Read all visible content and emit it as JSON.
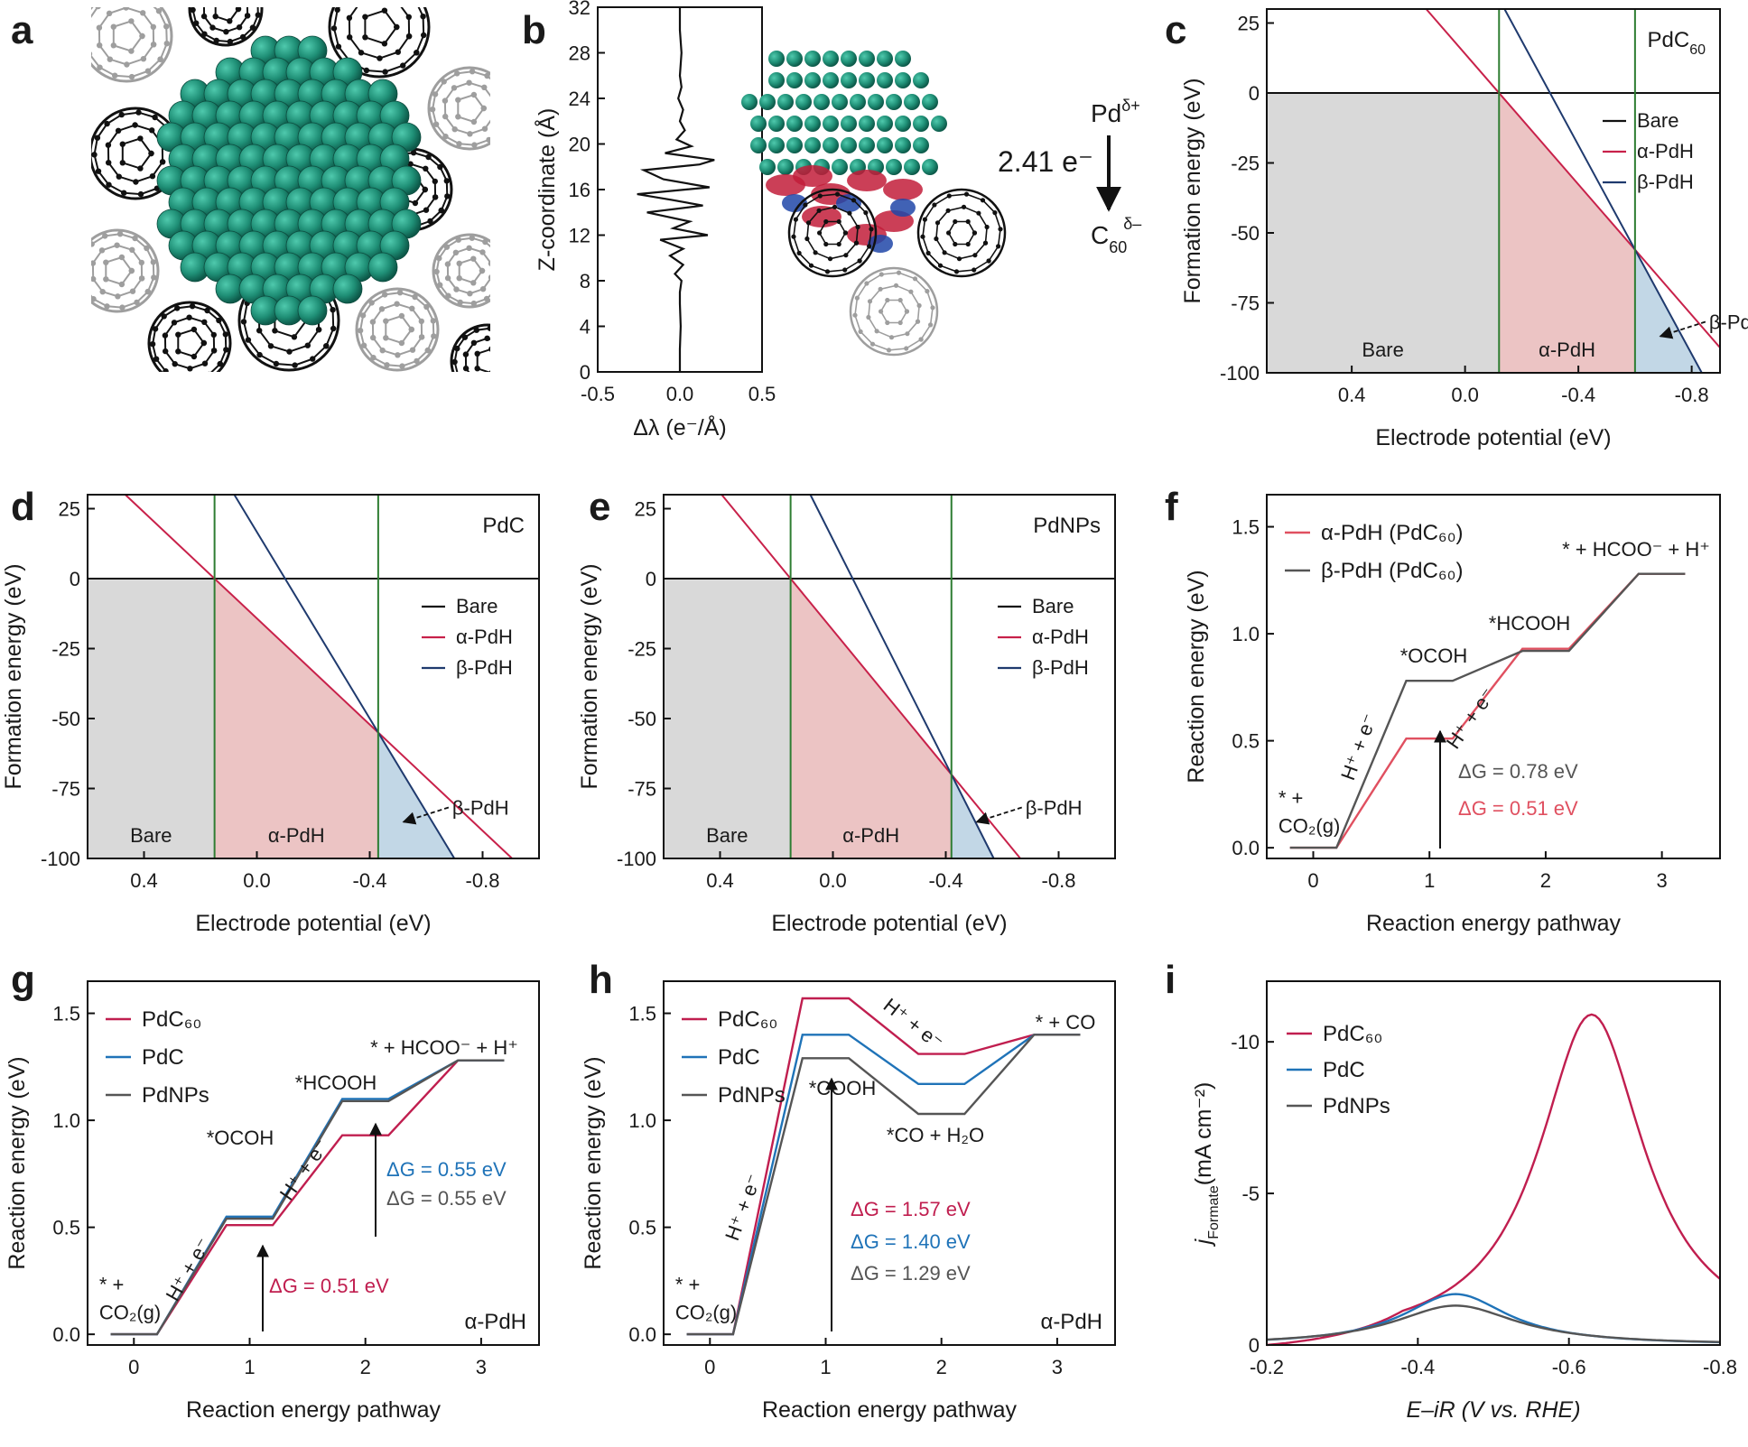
{
  "colors": {
    "bare": "#111111",
    "alpha": "#c8214a",
    "beta": "#1f3a6e",
    "pdc60": "#c01e4f",
    "pdc": "#1f73b8",
    "pdnps": "#555555",
    "phase_line": "#2e7d32",
    "bare_fill": "#d9d9d9",
    "alpha_fill": "#ecc4c4",
    "beta_fill": "#c2d7e6",
    "pd_atom": "#1f8f76",
    "c60_dark": "#111111",
    "c60_light": "#9e9e9e"
  },
  "panels": {
    "a": {
      "label": "a",
      "icons": [
        "pd-nanoparticle-icon",
        "c60-fullerene-icon"
      ]
    },
    "b": {
      "label": "b",
      "charge_text": "2.41 e⁻",
      "pd_text": "Pd",
      "pd_sup": "δ+",
      "c_text": "C",
      "c_sub": "60",
      "c_sup": "δ–"
    },
    "c": {
      "label": "c"
    },
    "d": {
      "label": "d"
    },
    "e": {
      "label": "e"
    },
    "f": {
      "label": "f"
    },
    "g": {
      "label": "g"
    },
    "h": {
      "label": "h"
    },
    "i": {
      "label": "i"
    }
  },
  "chart_data": [
    {
      "id": "b",
      "type": "line",
      "xlabel": "Δλ (e⁻/Å)",
      "ylabel": "Z-coordinate (Å)",
      "xlim": [
        -0.5,
        0.5
      ],
      "ylim": [
        0,
        32
      ],
      "xticks": [
        "-0.5",
        "0.0",
        "0.5"
      ],
      "yticks": [
        "0",
        "4",
        "8",
        "12",
        "16",
        "20",
        "24",
        "28",
        "32"
      ],
      "series": [
        {
          "points": [
            [
              0,
              0
            ],
            [
              0,
              2
            ],
            [
              0.005,
              4
            ],
            [
              0,
              6
            ],
            [
              0,
              7
            ],
            [
              0.01,
              8
            ],
            [
              -0.03,
              8.6
            ],
            [
              0.02,
              9.4
            ],
            [
              -0.06,
              10.2
            ],
            [
              0.02,
              10.8
            ],
            [
              -0.12,
              11.6
            ],
            [
              0.17,
              12.0
            ],
            [
              -0.04,
              12.6
            ],
            [
              0.06,
              13.2
            ],
            [
              -0.2,
              14.0
            ],
            [
              0.14,
              14.6
            ],
            [
              -0.05,
              15.1
            ],
            [
              -0.26,
              15.6
            ],
            [
              0.18,
              16.2
            ],
            [
              -0.1,
              16.9
            ],
            [
              -0.22,
              17.7
            ],
            [
              0.12,
              18.2
            ],
            [
              0.21,
              18.6
            ],
            [
              -0.09,
              19.2
            ],
            [
              0.07,
              19.8
            ],
            [
              -0.02,
              20.4
            ],
            [
              0.03,
              21.2
            ],
            [
              0,
              22
            ],
            [
              0.02,
              23
            ],
            [
              -0.01,
              24
            ],
            [
              0.01,
              25
            ],
            [
              0,
              26
            ],
            [
              0.01,
              28
            ],
            [
              0,
              30
            ],
            [
              0,
              32
            ]
          ]
        }
      ]
    },
    {
      "id": "c",
      "type": "area",
      "title": "PdC",
      "title_sub": "60",
      "xlabel": "Electrode potential (eV)",
      "ylabel": "Formation energy (eV)",
      "xlim": [
        0.7,
        -0.9
      ],
      "ylim": [
        -100,
        30
      ],
      "xticks": [
        "0.4",
        "0.0",
        "-0.4",
        "-0.8"
      ],
      "yticks": [
        "25",
        "0",
        "-25",
        "-50",
        "-75",
        "-100"
      ],
      "phase_boundaries": [
        -0.12,
        -0.6
      ],
      "regions": [
        "Bare",
        "α-PdH"
      ],
      "arrow_label": "β-PdH",
      "legend": [
        "Bare",
        "α-PdH",
        "β-PdH"
      ],
      "legend_position": "right",
      "series": [
        {
          "name": "Bare",
          "x": [
            0.7,
            -0.9
          ],
          "y": [
            0,
            0
          ]
        },
        {
          "name": "α-PdH",
          "x": [
            -0.12,
            -0.6
          ],
          "y": [
            0,
            -56
          ]
        },
        {
          "name": "β-PdH",
          "x": [
            -0.3,
            -0.6
          ],
          "y": [
            0,
            -56
          ]
        }
      ]
    },
    {
      "id": "d",
      "type": "area",
      "title": "PdC",
      "xlabel": "Electrode potential (eV)",
      "ylabel": "Formation energy (eV)",
      "xlim": [
        0.6,
        -1.0
      ],
      "ylim": [
        -100,
        30
      ],
      "xticks": [
        "0.4",
        "0.0",
        "-0.4",
        "-0.8"
      ],
      "yticks": [
        "25",
        "0",
        "-25",
        "-50",
        "-75",
        "-100"
      ],
      "phase_boundaries": [
        0.15,
        -0.43
      ],
      "regions": [
        "Bare",
        "α-PdH"
      ],
      "arrow_label": "β-PdH",
      "legend": [
        "Bare",
        "α-PdH",
        "β-PdH"
      ],
      "legend_position": "right",
      "series": [
        {
          "name": "Bare",
          "x": [
            0.6,
            -1.0
          ],
          "y": [
            0,
            0
          ]
        },
        {
          "name": "α-PdH",
          "x": [
            0.15,
            -0.43
          ],
          "y": [
            0,
            -55
          ]
        },
        {
          "name": "β-PdH",
          "x": [
            -0.1,
            -0.43
          ],
          "y": [
            0,
            -55
          ]
        }
      ]
    },
    {
      "id": "e",
      "type": "area",
      "title": "PdNPs",
      "xlabel": "Electrode potential (eV)",
      "ylabel": "Formation energy (eV)",
      "xlim": [
        0.6,
        -1.0
      ],
      "ylim": [
        -100,
        30
      ],
      "xticks": [
        "0.4",
        "0.0",
        "-0.4",
        "-0.8"
      ],
      "yticks": [
        "25",
        "0",
        "-25",
        "-50",
        "-75",
        "-100"
      ],
      "phase_boundaries": [
        0.15,
        -0.42
      ],
      "regions": [
        "Bare",
        "α-PdH"
      ],
      "arrow_label": "β-PdH",
      "legend": [
        "Bare",
        "α-PdH",
        "β-PdH"
      ],
      "legend_position": "right",
      "series": [
        {
          "name": "Bare",
          "x": [
            0.6,
            -1.0
          ],
          "y": [
            0,
            0
          ]
        },
        {
          "name": "α-PdH",
          "x": [
            0.15,
            -0.42
          ],
          "y": [
            0,
            -70
          ]
        },
        {
          "name": "β-PdH",
          "x": [
            -0.07,
            -0.42
          ],
          "y": [
            0,
            -70
          ]
        }
      ]
    },
    {
      "id": "f",
      "type": "line",
      "xlabel": "Reaction energy pathway",
      "ylabel": "Reaction energy (eV)",
      "xlim": [
        -0.4,
        3.5
      ],
      "ylim": [
        -0.05,
        1.65
      ],
      "xticks": [
        "0",
        "1",
        "2",
        "3"
      ],
      "yticks": [
        "0.0",
        "0.5",
        "1.0",
        "1.5"
      ],
      "legend_position": "top-left",
      "series": [
        {
          "name": "α-PdH (PdC₆₀)",
          "color": "#e05060",
          "levels": [
            0,
            0.51,
            0.93,
            1.28
          ]
        },
        {
          "name": "β-PdH (PdC₆₀)",
          "color": "#555555",
          "levels": [
            0,
            0.78,
            0.92,
            1.28
          ]
        }
      ],
      "step_labels": [
        "*OCOH",
        "*HCOOH",
        "* + HCOO⁻ + H⁺"
      ],
      "start_label": [
        "* +",
        "CO₂(g)"
      ],
      "proton_labels": [
        "H⁺ + e⁻",
        "H⁺ + e⁻"
      ],
      "dg": [
        "ΔG = 0.78 eV",
        "ΔG = 0.51 eV"
      ]
    },
    {
      "id": "g",
      "type": "line",
      "xlabel": "Reaction energy pathway",
      "ylabel": "Reaction energy (eV)",
      "xlim": [
        -0.4,
        3.5
      ],
      "ylim": [
        -0.05,
        1.65
      ],
      "xticks": [
        "0",
        "1",
        "2",
        "3"
      ],
      "yticks": [
        "0.0",
        "0.5",
        "1.0",
        "1.5"
      ],
      "legend_position": "top-left",
      "corner_label": "α-PdH",
      "series": [
        {
          "name": "PdC₆₀",
          "levels": [
            0,
            0.51,
            0.93,
            1.28
          ]
        },
        {
          "name": "PdC",
          "levels": [
            0,
            0.55,
            1.1,
            1.28
          ]
        },
        {
          "name": "PdNPs",
          "levels": [
            0,
            0.54,
            1.09,
            1.28
          ]
        }
      ],
      "step_labels": [
        "*OCOH",
        "*HCOOH",
        "* + HCOO⁻ + H⁺"
      ],
      "start_label": [
        "* +",
        "CO₂(g)"
      ],
      "proton_labels": [
        "H⁺ + e⁻",
        "H⁺ + e⁻"
      ],
      "dg": [
        "ΔG = 0.51 eV",
        "ΔG = 0.55 eV",
        "ΔG = 0.55 eV"
      ]
    },
    {
      "id": "h",
      "type": "line",
      "xlabel": "Reaction energy pathway",
      "ylabel": "Reaction energy (eV)",
      "xlim": [
        -0.4,
        3.5
      ],
      "ylim": [
        -0.05,
        1.65
      ],
      "xticks": [
        "0",
        "1",
        "2",
        "3"
      ],
      "yticks": [
        "0.0",
        "0.5",
        "1.0",
        "1.5"
      ],
      "legend_position": "top-left",
      "corner_label": "α-PdH",
      "series": [
        {
          "name": "PdC₆₀",
          "levels": [
            0,
            1.57,
            1.31,
            1.4
          ]
        },
        {
          "name": "PdC",
          "levels": [
            0,
            1.4,
            1.17,
            1.4
          ]
        },
        {
          "name": "PdNPs",
          "levels": [
            0,
            1.29,
            1.03,
            1.4
          ]
        }
      ],
      "step_labels": [
        "*COOH",
        "*CO + H₂O",
        "* + CO"
      ],
      "start_label": [
        "* +",
        "CO₂(g)"
      ],
      "proton_labels": [
        "H⁺ + e⁻",
        "H⁺ + e⁻"
      ],
      "dg": [
        "ΔG = 1.57 eV",
        "ΔG = 1.40 eV",
        "ΔG = 1.29 eV"
      ]
    },
    {
      "id": "i",
      "type": "line",
      "xlabel": "E–iR (V vs. RHE)",
      "ylabel": "j",
      "ylabel_sub": "Formate",
      "ylabel_rest": "(mA cm⁻²)",
      "xlim": [
        -0.2,
        -0.8
      ],
      "ylim": [
        0,
        -12
      ],
      "xticks": [
        "-0.2",
        "-0.4",
        "-0.6",
        "-0.8"
      ],
      "yticks": [
        "0",
        "-5",
        "-10"
      ],
      "legend_position": "top-left",
      "series": [
        {
          "name": "PdC₆₀",
          "peak_x": -0.63,
          "peak_y": -10.9
        },
        {
          "name": "PdC",
          "peak_x": -0.45,
          "peak_y": -1.68
        },
        {
          "name": "PdNPs",
          "peak_x": -0.45,
          "peak_y": -1.3
        }
      ]
    }
  ]
}
